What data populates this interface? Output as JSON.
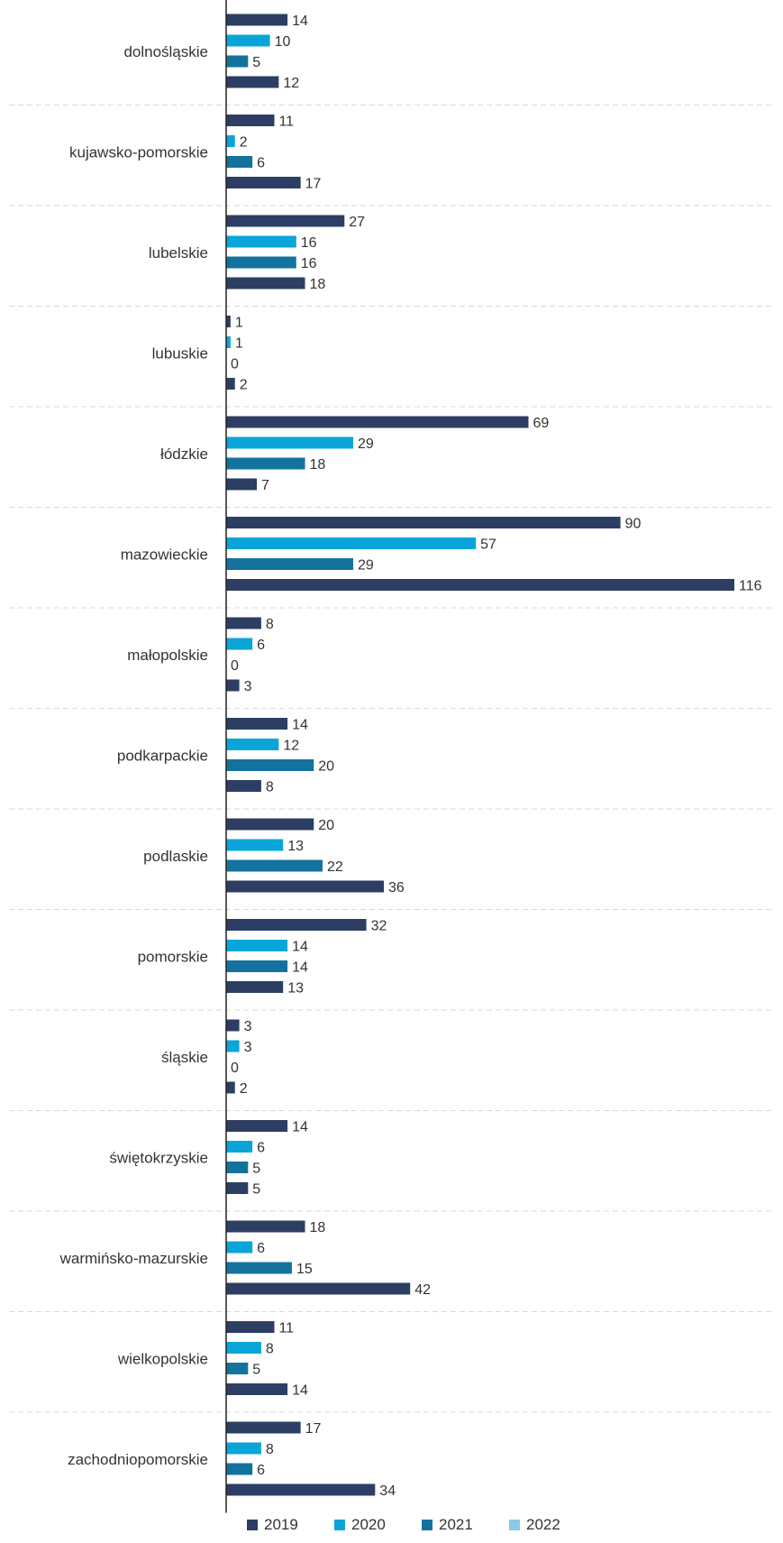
{
  "chart_data": {
    "type": "bar",
    "orientation": "horizontal",
    "categories": [
      "dolnośląskie",
      "kujawsko-pomorskie",
      "lubelskie",
      "lubuskie",
      "łódzkie",
      "mazowieckie",
      "małopolskie",
      "podkarpackie",
      "podlaskie",
      "pomorskie",
      "śląskie",
      "świętokrzyskie",
      "warmińsko-mazurskie",
      "wielkopolskie",
      "zachodniopomorskie"
    ],
    "series": [
      {
        "name": "2019",
        "color": "#2c3e63",
        "values": [
          14,
          11,
          27,
          1,
          69,
          90,
          8,
          14,
          20,
          32,
          3,
          14,
          18,
          11,
          17
        ]
      },
      {
        "name": "2020",
        "color": "#0aa5d8",
        "values": [
          10,
          2,
          16,
          1,
          29,
          57,
          6,
          12,
          13,
          14,
          3,
          6,
          6,
          8,
          8
        ]
      },
      {
        "name": "2021",
        "color": "#13739e",
        "values": [
          5,
          6,
          16,
          0,
          18,
          29,
          0,
          20,
          22,
          14,
          0,
          5,
          15,
          5,
          6
        ]
      },
      {
        "name": "2022",
        "color": "#8cc8e8",
        "bar_color": "#2c3e63",
        "values": [
          12,
          17,
          18,
          2,
          7,
          116,
          3,
          8,
          36,
          13,
          2,
          5,
          42,
          14,
          34
        ]
      }
    ],
    "xlim": [
      0,
      116
    ],
    "grid": false,
    "legend_position": "bottom"
  }
}
